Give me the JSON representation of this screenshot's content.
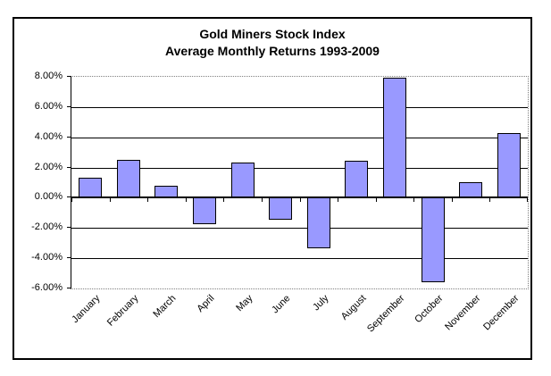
{
  "chart_data": {
    "type": "bar",
    "title_line1": "Gold Miners Stock Index",
    "title_line2": "Average Monthly Returns 1993-2009",
    "categories": [
      "January",
      "February",
      "March",
      "April",
      "May",
      "June",
      "July",
      "August",
      "September",
      "October",
      "November",
      "December"
    ],
    "values": [
      1.3,
      2.5,
      0.8,
      -1.75,
      2.3,
      -1.5,
      -3.35,
      2.45,
      7.95,
      -5.6,
      1.0,
      4.3
    ],
    "value_unit": "%",
    "xlabel": "",
    "ylabel": "",
    "legend": "none",
    "grid": "horizontal",
    "y_axis": {
      "min": -6,
      "max": 8,
      "step": 2,
      "tick_values": [
        8,
        6,
        4,
        2,
        0,
        -2,
        -4,
        -6
      ],
      "tick_labels": [
        "8.00%",
        "6.00%",
        "4.00%",
        "2.00%",
        "0.00%",
        "-2.00%",
        "-4.00%",
        "-6.00%"
      ]
    },
    "colors": {
      "bar_fill": "#9999FF",
      "bar_border": "#000000",
      "gridline": "#000000",
      "plot_border": "#808080",
      "text": "#000000",
      "background": "#FFFFFF"
    }
  }
}
